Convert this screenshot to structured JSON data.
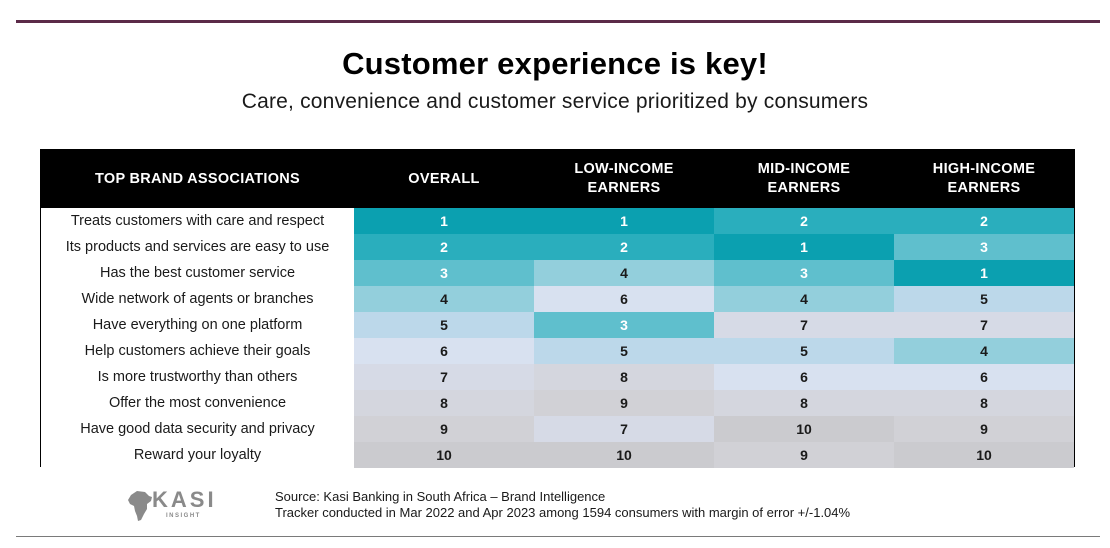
{
  "header": {
    "title": "Customer experience is key!",
    "subtitle": "Care, convenience and customer service prioritized by consumers"
  },
  "chart_data": {
    "type": "table",
    "title": "Customer experience is key!",
    "subtitle": "Care, convenience and customer service prioritized by consumers",
    "columns": [
      {
        "label": "TOP BRAND ASSOCIATIONS"
      },
      {
        "label": "OVERALL"
      },
      {
        "label": "LOW-INCOME",
        "label2": "EARNERS"
      },
      {
        "label": "MID-INCOME",
        "label2": "EARNERS"
      },
      {
        "label": "HIGH-INCOME",
        "label2": "EARNERS"
      }
    ],
    "rows": [
      {
        "label": "Treats customers with care and respect",
        "ranks": [
          1,
          1,
          2,
          2
        ]
      },
      {
        "label": "Its products and services are easy to use",
        "ranks": [
          2,
          2,
          1,
          3
        ]
      },
      {
        "label": "Has the best customer service",
        "ranks": [
          3,
          4,
          3,
          1
        ]
      },
      {
        "label": "Wide network of agents or branches",
        "ranks": [
          4,
          6,
          4,
          5
        ]
      },
      {
        "label": "Have everything on one platform",
        "ranks": [
          5,
          3,
          7,
          7
        ]
      },
      {
        "label": "Help customers achieve their goals",
        "ranks": [
          6,
          5,
          5,
          4
        ]
      },
      {
        "label": "Is more trustworthy than others",
        "ranks": [
          7,
          8,
          6,
          6
        ]
      },
      {
        "label": "Offer the most convenience",
        "ranks": [
          8,
          9,
          8,
          8
        ]
      },
      {
        "label": "Have good data security and privacy",
        "ranks": [
          9,
          7,
          10,
          9
        ]
      },
      {
        "label": "Reward your loyalty",
        "ranks": [
          10,
          10,
          9,
          10
        ]
      }
    ],
    "rank_colors": {
      "1": "#0ba0b0",
      "2": "#2aaebd",
      "3": "#5fbfcd",
      "4": "#93cfdc",
      "5": "#bcd8ea",
      "6": "#d8e1f0",
      "7": "#d6dae6",
      "8": "#d4d6de",
      "9": "#d1d1d6",
      "10": "#cbcbcf"
    }
  },
  "footer": {
    "logo_text": "KASI",
    "logo_subtext": "INSIGHT",
    "source_line1": "Source: Kasi Banking in South Africa – Brand Intelligence",
    "source_line2": "Tracker conducted in Mar 2022 and Apr 2023  among 1594 consumers with margin of error +/-1.04%"
  },
  "colors": {
    "accent_rule": "#5b2a48",
    "header_bg": "#000000",
    "logo_gray": "#8a8a8a"
  }
}
